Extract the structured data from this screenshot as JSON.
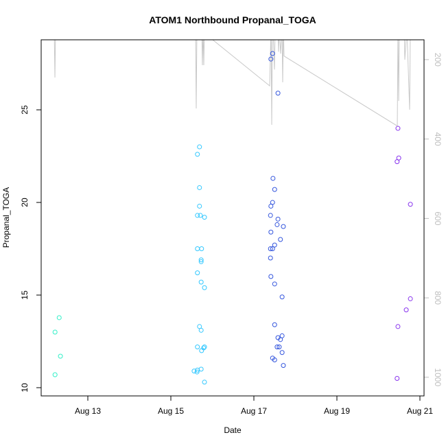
{
  "chart_data": {
    "type": "scatter",
    "title": "ATOM1 Northbound Propanal_TOGA",
    "xlabel": "Date",
    "ylabel": "Propanal_TOGA",
    "xlim": [
      11.876,
      21.099
    ],
    "xticks": [
      {
        "value": 13,
        "label": "Aug 13"
      },
      {
        "value": 15,
        "label": "Aug 15"
      },
      {
        "value": 17,
        "label": "Aug 17"
      },
      {
        "value": 19,
        "label": "Aug 19"
      },
      {
        "value": 21,
        "label": "Aug 21"
      }
    ],
    "ylim": [
      9.556,
      28.78
    ],
    "yticks": [
      10,
      15,
      20,
      25
    ],
    "y2lim": [
      1047,
      150
    ],
    "y2ticks": [
      200,
      400,
      600,
      800,
      1000
    ],
    "y2color": "#bebebe",
    "series": [
      {
        "color": "#33f0c8",
        "style": "points",
        "x": [
          12.21,
          12.31,
          12.34,
          12.21
        ],
        "values": [
          13.0,
          13.78,
          11.7,
          10.7
        ]
      },
      {
        "color": "#33c8ff",
        "style": "points",
        "x": [
          15.69,
          15.64,
          15.69,
          15.69,
          15.64,
          15.71,
          15.81,
          15.64,
          15.74,
          15.73,
          15.73,
          15.64,
          15.73,
          15.81,
          15.69,
          15.73,
          15.64,
          15.81,
          15.79,
          15.74,
          15.73,
          15.64,
          15.63,
          15.56,
          15.81
        ],
        "values": [
          23.0,
          22.6,
          20.8,
          19.8,
          19.3,
          19.3,
          19.2,
          17.5,
          17.5,
          16.9,
          16.8,
          16.2,
          15.7,
          15.4,
          13.3,
          13.1,
          12.2,
          12.2,
          12.15,
          12.0,
          11.0,
          10.95,
          10.85,
          10.9,
          10.3
        ]
      },
      {
        "color": "#3355dd",
        "style": "points",
        "x": [
          17.45,
          17.41,
          17.58,
          17.46,
          17.5,
          17.45,
          17.41,
          17.58,
          17.4,
          17.56,
          17.71,
          17.41,
          17.64,
          17.5,
          17.45,
          17.4,
          17.4,
          17.41,
          17.5,
          17.68,
          17.5,
          17.68,
          17.58,
          17.64,
          17.56,
          17.61,
          17.68,
          17.45,
          17.5,
          17.71
        ],
        "values": [
          28.04,
          27.74,
          25.9,
          21.3,
          20.7,
          20.0,
          19.8,
          19.1,
          19.3,
          18.8,
          18.7,
          18.4,
          18.0,
          17.7,
          17.5,
          17.5,
          17.0,
          16.0,
          15.6,
          14.9,
          13.4,
          12.8,
          12.7,
          12.6,
          12.2,
          12.2,
          11.9,
          11.6,
          11.5,
          11.2
        ]
      },
      {
        "color": "#8833ee",
        "style": "points",
        "x": [
          20.47,
          20.49,
          20.45,
          20.77,
          20.77,
          20.67,
          20.47,
          20.45
        ],
        "values": [
          24.0,
          22.4,
          22.2,
          19.9,
          14.8,
          14.2,
          13.3,
          10.5
        ]
      },
      {
        "color": "#c8c8c8",
        "style": "line",
        "axis": "y2",
        "x": [
          12.19,
          12.207,
          12.223,
          15.595,
          15.611,
          15.628,
          15.744,
          15.76,
          15.777,
          15.793,
          15.81,
          15.843,
          17.38,
          17.413,
          17.43,
          17.446,
          17.463,
          17.496,
          17.512,
          17.579,
          17.595,
          17.612,
          17.645,
          17.678,
          17.694,
          17.71,
          17.727,
          20.438,
          20.455,
          20.471,
          20.488,
          20.504,
          20.62,
          20.636,
          20.686,
          20.752,
          20.769
        ],
        "values": [
          120,
          245,
          120,
          120,
          323,
          120,
          120,
          214,
          120,
          214,
          120,
          136,
          266,
          120,
          364,
          120,
          130,
          225,
          120,
          120,
          180,
          120,
          185,
          120,
          257,
          120,
          191,
          366,
          366,
          120,
          304,
          120,
          120,
          200,
          120,
          326,
          120
        ]
      }
    ]
  }
}
